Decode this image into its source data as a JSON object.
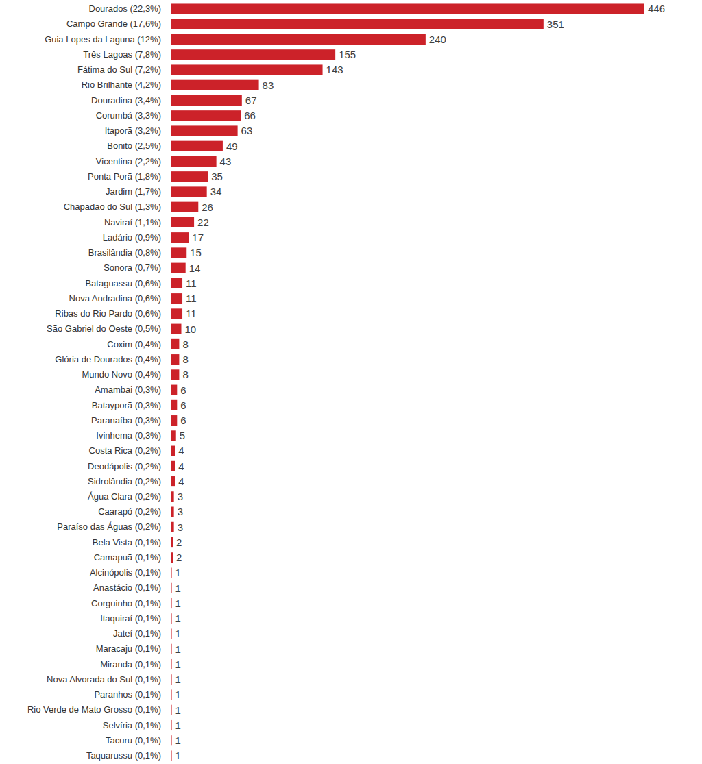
{
  "chart_data": {
    "type": "bar",
    "orientation": "horizontal",
    "color": "#cc2229",
    "data_labels": true,
    "tick_labels": "y",
    "grid": false,
    "categories": [
      "Dourados (22,3%)",
      "Campo Grande (17,6%)",
      "Guia Lopes da Laguna (12%)",
      "Três Lagoas (7,8%)",
      "Fátima do Sul (7,2%)",
      "Rio Brilhante (4,2%)",
      "Douradina (3,4%)",
      "Corumbá (3,3%)",
      "Itaporã (3,2%)",
      "Bonito (2,5%)",
      "Vicentina (2,2%)",
      "Ponta Porã (1,8%)",
      "Jardim (1,7%)",
      "Chapadão do Sul (1,3%)",
      "Naviraí (1,1%)",
      "Ladário (0,9%)",
      "Brasilândia (0,8%)",
      "Sonora (0,7%)",
      "Bataguassu (0,6%)",
      "Nova Andradina (0,6%)",
      "Ribas do Rio Pardo (0,6%)",
      "São Gabriel do Oeste (0,5%)",
      "Coxim (0,4%)",
      "Glória de Dourados (0,4%)",
      "Mundo Novo (0,4%)",
      "Amambai (0,3%)",
      "Batayporã (0,3%)",
      "Paranaíba (0,3%)",
      "Ivinhema (0,3%)",
      "Costa Rica (0,2%)",
      "Deodápolis (0,2%)",
      "Sidrolândia (0,2%)",
      "Água Clara (0,2%)",
      "Caarapó (0,2%)",
      "Paraíso das Águas (0,2%)",
      "Bela Vista (0,1%)",
      "Camapuã (0,1%)",
      "Alcinópolis (0,1%)",
      "Anastácio (0,1%)",
      "Corguinho (0,1%)",
      "Itaquiraí (0,1%)",
      "Jateí (0,1%)",
      "Maracaju (0,1%)",
      "Miranda (0,1%)",
      "Nova Alvorada do Sul (0,1%)",
      "Paranhos (0,1%)",
      "Rio Verde de Mato Grosso (0,1%)",
      "Selvíria (0,1%)",
      "Tacuru (0,1%)",
      "Taquarussu (0,1%)"
    ],
    "values": [
      446,
      351,
      240,
      155,
      143,
      83,
      67,
      66,
      63,
      49,
      43,
      35,
      34,
      26,
      22,
      17,
      15,
      14,
      11,
      11,
      11,
      10,
      8,
      8,
      8,
      6,
      6,
      6,
      5,
      4,
      4,
      4,
      3,
      3,
      3,
      2,
      2,
      1,
      1,
      1,
      1,
      1,
      1,
      1,
      1,
      1,
      1,
      1,
      1,
      1
    ],
    "xlim": [
      0,
      446
    ]
  }
}
